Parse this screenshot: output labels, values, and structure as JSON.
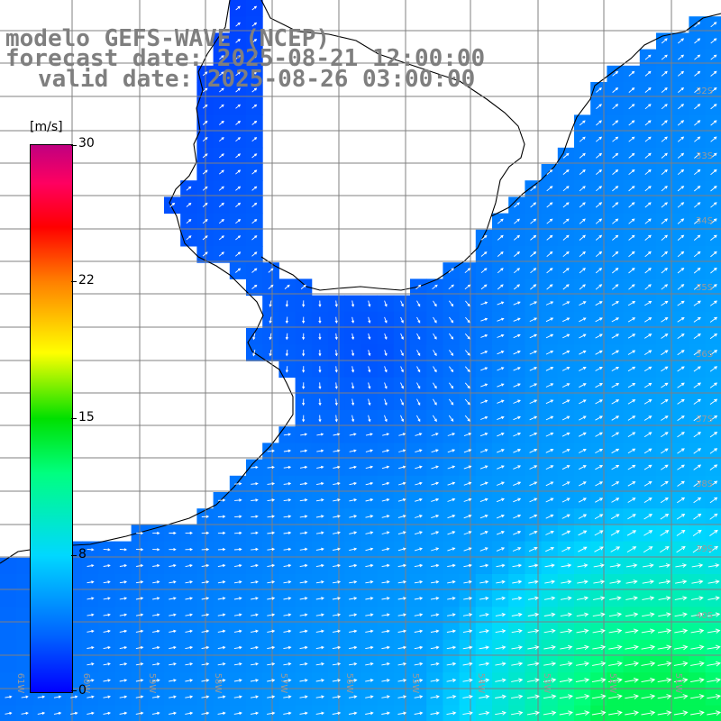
{
  "title": {
    "line1": "modelo GEFS-WAVE (NCEP)",
    "line2": "forecast date: 2025-08-21 12:00:00",
    "line3": "valid date: 2025-08-26 03:00:00"
  },
  "colorbar": {
    "unit": "[m/s]",
    "min": 0,
    "max": 30,
    "ticks": [
      "30",
      "22",
      "15",
      "8",
      "0"
    ],
    "tick_values": [
      30,
      22.5,
      15,
      7.5,
      0
    ]
  },
  "map": {
    "latitude_labels": [
      "32S",
      "33S",
      "34S",
      "35S",
      "36S",
      "37S",
      "38S",
      "39S",
      "40S"
    ],
    "longitude_labels": [
      "61W",
      "60W",
      "59W",
      "58W",
      "57W",
      "56W",
      "55W",
      "54W",
      "53W",
      "52W",
      "51W"
    ],
    "land_color": "#ffffff",
    "arrow_color": "#ffffff",
    "grid_color": "#808080",
    "coast_color": "#000000"
  }
}
